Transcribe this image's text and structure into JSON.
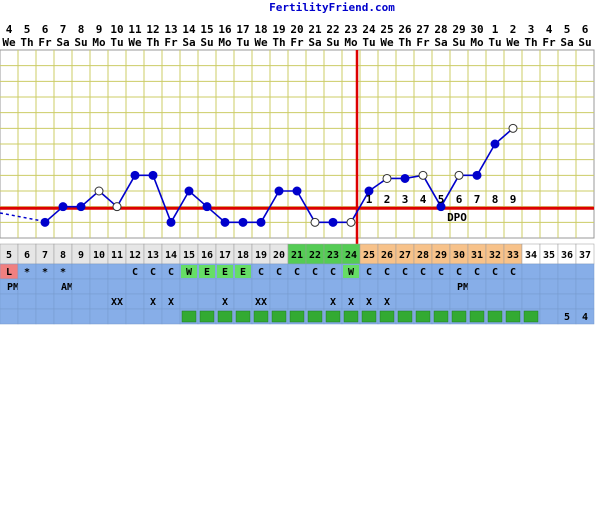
{
  "chart_data": {
    "type": "line",
    "title": "FertilityFriend.com",
    "xlabel": "",
    "ylabel": "",
    "grid": true,
    "dates": [
      "4",
      "5",
      "6",
      "7",
      "8",
      "9",
      "10",
      "11",
      "12",
      "13",
      "14",
      "15",
      "16",
      "17",
      "18",
      "19",
      "20",
      "21",
      "22",
      "23",
      "24",
      "25",
      "26",
      "27",
      "28",
      "29",
      "30",
      "1",
      "2",
      "3",
      "4",
      "5",
      "6"
    ],
    "weekdays": [
      "We",
      "Th",
      "Fr",
      "Sa",
      "Su",
      "Mo",
      "Tu",
      "We",
      "Th",
      "Fr",
      "Sa",
      "Su",
      "Mo",
      "Tu",
      "We",
      "Th",
      "Fr",
      "Sa",
      "Su",
      "Mo",
      "Tu",
      "We",
      "Th",
      "Fr",
      "Sa",
      "Su",
      "Mo",
      "Tu",
      "We",
      "Th",
      "Fr",
      "Sa",
      "Su"
    ],
    "cycle_days": [
      "5",
      "6",
      "7",
      "8",
      "9",
      "10",
      "11",
      "12",
      "13",
      "14",
      "15",
      "16",
      "17",
      "18",
      "19",
      "20",
      "21",
      "22",
      "23",
      "24",
      "25",
      "26",
      "27",
      "28",
      "29",
      "30",
      "31",
      "32",
      "33",
      "34",
      "35",
      "36",
      "37"
    ],
    "y_range": [
      0,
      12
    ],
    "series": [
      {
        "values": [
          null,
          null,
          1,
          2,
          2,
          3,
          2,
          4,
          4,
          1,
          3,
          2,
          1,
          1,
          1,
          3,
          3,
          1,
          1,
          1,
          3,
          3.8,
          3.8,
          4,
          2,
          4,
          4,
          6,
          7,
          null,
          null,
          null,
          null
        ],
        "point_style": [
          "none",
          "none",
          "filled",
          "filled",
          "filled",
          "open",
          "open",
          "filled",
          "filled",
          "filled",
          "filled",
          "filled",
          "filled",
          "filled",
          "filled",
          "filled",
          "filled",
          "open",
          "filled",
          "open",
          "filled",
          "open",
          "filled",
          "open",
          "filled",
          "open",
          "filled",
          "filled",
          "open",
          "none",
          "none",
          "none",
          "none"
        ]
      }
    ],
    "lead_in_dashed": [
      1.6,
      1.1
    ],
    "coverline": 1.9,
    "ovulation_day_index": 19,
    "dpo_labels": [
      "1",
      "2",
      "3",
      "4",
      "5",
      "6",
      "7",
      "8",
      "9"
    ],
    "dpo_text": "DPO",
    "row_menses": [
      "L",
      "*",
      "*",
      "*",
      "",
      "",
      "",
      "",
      "",
      "",
      "",
      "",
      "",
      "",
      "",
      "",
      "",
      "",
      "",
      "",
      "",
      "",
      "",
      "",
      "",
      "",
      "",
      "",
      "",
      "",
      "",
      "",
      ""
    ],
    "row_cervical": [
      "",
      "",
      "",
      "",
      "",
      "",
      "",
      "C",
      "C",
      "C",
      "W",
      "E",
      "E",
      "E",
      "C",
      "C",
      "C",
      "C",
      "C",
      "W",
      "C",
      "C",
      "C",
      "C",
      "C",
      "C",
      "C",
      "C",
      "C",
      "",
      "",
      "",
      ""
    ],
    "row_time": [
      "PM",
      "",
      "",
      "AM",
      "",
      "",
      "",
      "",
      "",
      "",
      "",
      "",
      "",
      "",
      "",
      "",
      "",
      "",
      "",
      "",
      "",
      "",
      "",
      "",
      "",
      "PM",
      "",
      "",
      "",
      "",
      "",
      "",
      ""
    ],
    "row_opk": [
      "",
      "",
      "",
      "",
      "",
      "",
      "XX",
      "",
      "X",
      "X",
      "",
      "",
      "X",
      "",
      "XX",
      "",
      "",
      "",
      "X",
      "X",
      "X",
      "X",
      "",
      "",
      "",
      "",
      "",
      "",
      "",
      "",
      "",
      "",
      ""
    ],
    "row_bottom": [
      "",
      "",
      "",
      "",
      "",
      "",
      "",
      "",
      "",
      "",
      "",
      "",
      "",
      "",
      "",
      "",
      "",
      "",
      "",
      "",
      "",
      "",
      "",
      "",
      "",
      "",
      "",
      "",
      "",
      "",
      "",
      "5",
      "4"
    ],
    "colors": {
      "line": "#0000cc",
      "coverline": "#dd0000",
      "ovulation": "#dd0000",
      "grid": "#cccc66",
      "menses": "#f08080",
      "cervical_row": "#87aee8",
      "fertile_cell": "#66dd66",
      "fertile_day": "#55cc55",
      "luteal_day": "#f7c28a",
      "green_box": "#33aa33",
      "day_cell": "#e6e6e6"
    }
  }
}
